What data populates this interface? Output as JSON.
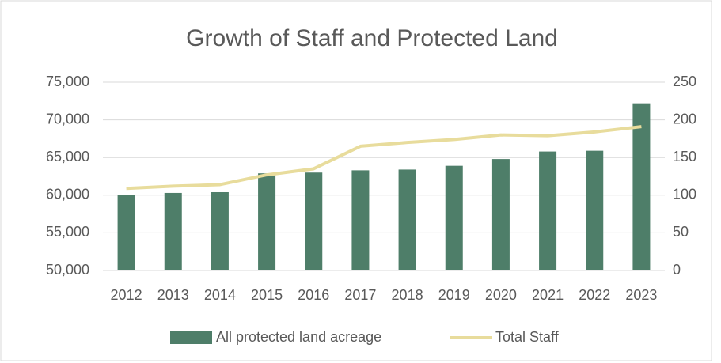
{
  "chart_data": {
    "type": "bar-line",
    "title": "Growth of Staff and Protected Land",
    "categories": [
      "2012",
      "2013",
      "2014",
      "2015",
      "2016",
      "2017",
      "2018",
      "2019",
      "2020",
      "2021",
      "2022",
      "2023"
    ],
    "series": [
      {
        "name": "All protected land acreage",
        "type": "bar",
        "color": "#4e7e69",
        "values": [
          60000,
          60300,
          60400,
          62900,
          63000,
          63300,
          63400,
          63900,
          64800,
          65800,
          65900,
          72200
        ]
      },
      {
        "name": "Total Staff",
        "type": "line",
        "color": "#e8dc9c",
        "axis": "y2",
        "values": [
          109,
          112,
          114,
          127,
          135,
          165,
          170,
          174,
          180,
          179,
          184,
          191
        ]
      }
    ],
    "ylim": [
      50000,
      75000
    ],
    "yticks": [
      {
        "value": 50000,
        "label": "50,000"
      },
      {
        "value": 55000,
        "label": "55,000"
      },
      {
        "value": 60000,
        "label": "60,000"
      },
      {
        "value": 65000,
        "label": "65,000"
      },
      {
        "value": 70000,
        "label": "70,000"
      },
      {
        "value": 75000,
        "label": "75,000"
      }
    ],
    "y2lim": [
      0,
      250
    ],
    "y2ticks": [
      0,
      50,
      100,
      150,
      200,
      250
    ],
    "grid": true,
    "legend": "bottom"
  }
}
